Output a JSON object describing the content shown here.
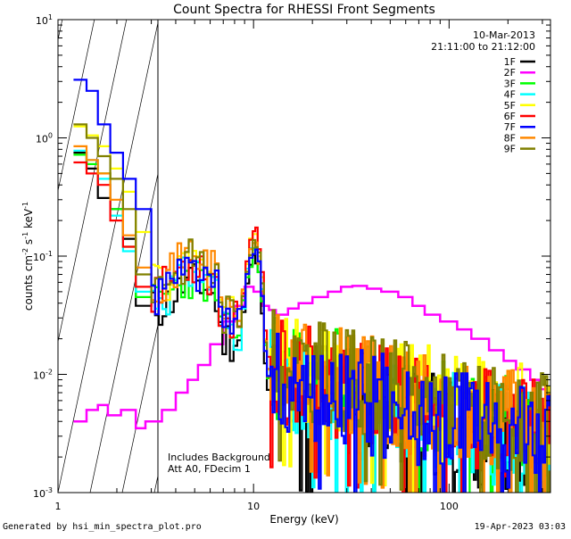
{
  "chart_data": {
    "type": "line",
    "title": "Count Spectra for RHESSI Front Segments",
    "xlabel": "Energy (keV)",
    "ylabel_base": "counts cm",
    "ylabel_exp1": "-2",
    "ylabel_mid": " s",
    "ylabel_exp2": "-1",
    "ylabel_tail": " keV",
    "ylabel_exp3": "-1",
    "xscale": "log",
    "yscale": "log",
    "xlim": [
      1,
      330
    ],
    "ylim": [
      0.001,
      10
    ],
    "x_ticks": [
      {
        "value": 1,
        "label": "1"
      },
      {
        "value": 10,
        "label": "10"
      },
      {
        "value": 100,
        "label": "100"
      }
    ],
    "y_ticks": [
      {
        "value": 0.001,
        "base": "10",
        "exp": "-3"
      },
      {
        "value": 0.01,
        "base": "10",
        "exp": "-2"
      },
      {
        "value": 0.1,
        "base": "10",
        "exp": "-1"
      },
      {
        "value": 1,
        "base": "10",
        "exp": "0"
      },
      {
        "value": 10,
        "base": "10",
        "exp": "1"
      }
    ],
    "hatch_region_x": [
      1,
      3
    ],
    "date": "10-Mar-2013",
    "time_range": "21:11:00 to 21:12:00",
    "annotations": [
      "Includes Background",
      "Att A0, FDecim 1"
    ],
    "series": [
      {
        "name": "1F",
        "color": "#000000",
        "low": [
          0.75,
          0.55,
          0.31,
          0.25,
          0.14,
          0.038
        ],
        "base": 0.037,
        "peak": 0.095,
        "tail_start": 0.008,
        "tail_end": 0.0022,
        "seed": 11
      },
      {
        "name": "2F",
        "color": "#ff00ff",
        "special": true,
        "points": [
          [
            1.2,
            0.004
          ],
          [
            1.4,
            0.005
          ],
          [
            1.6,
            0.0055
          ],
          [
            1.8,
            0.0045
          ],
          [
            2.1,
            0.005
          ],
          [
            2.5,
            0.0035
          ],
          [
            2.8,
            0.004
          ],
          [
            3.0,
            0.004
          ],
          [
            3.4,
            0.005
          ],
          [
            4,
            0.007
          ],
          [
            4.6,
            0.009
          ],
          [
            5.2,
            0.012
          ],
          [
            6,
            0.018
          ],
          [
            7,
            0.028
          ],
          [
            8,
            0.038
          ],
          [
            9,
            0.055
          ],
          [
            10,
            0.05
          ],
          [
            11,
            0.038
          ],
          [
            12,
            0.035
          ],
          [
            13,
            0.032
          ],
          [
            15,
            0.036
          ],
          [
            17,
            0.04
          ],
          [
            20,
            0.045
          ],
          [
            24,
            0.05
          ],
          [
            28,
            0.055
          ],
          [
            32,
            0.056
          ],
          [
            38,
            0.053
          ],
          [
            45,
            0.05
          ],
          [
            55,
            0.045
          ],
          [
            65,
            0.038
          ],
          [
            75,
            0.032
          ],
          [
            90,
            0.028
          ],
          [
            110,
            0.024
          ],
          [
            130,
            0.02
          ],
          [
            160,
            0.016
          ],
          [
            190,
            0.013
          ],
          [
            220,
            0.011
          ],
          [
            260,
            0.009
          ],
          [
            290,
            0.0075
          ],
          [
            320,
            0.0065
          ]
        ]
      },
      {
        "name": "3F",
        "color": "#00ff00",
        "low": [
          0.72,
          0.6,
          0.5,
          0.25,
          0.12,
          0.045
        ],
        "base": 0.042,
        "peak": 0.11,
        "tail_start": 0.012,
        "tail_end": 0.003,
        "seed": 23
      },
      {
        "name": "4F",
        "color": "#00ffff",
        "low": [
          0.78,
          0.65,
          0.45,
          0.22,
          0.11,
          0.05
        ],
        "base": 0.046,
        "peak": 0.12,
        "tail_start": 0.009,
        "tail_end": 0.0025,
        "seed": 31
      },
      {
        "name": "5F",
        "color": "#ffff00",
        "low": [
          1.25,
          1.05,
          0.85,
          0.55,
          0.35,
          0.16
        ],
        "base": 0.06,
        "peak": 0.15,
        "tail_start": 0.012,
        "tail_end": 0.004,
        "seed": 47
      },
      {
        "name": "6F",
        "color": "#ff0000",
        "low": [
          0.62,
          0.5,
          0.4,
          0.2,
          0.12,
          0.055
        ],
        "base": 0.055,
        "peak": 0.16,
        "tail_start": 0.011,
        "tail_end": 0.003,
        "seed": 53
      },
      {
        "name": "7F",
        "color": "#0000ff",
        "low": [
          3.1,
          2.5,
          1.3,
          0.75,
          0.45,
          0.25
        ],
        "base": 0.048,
        "peak": 0.115,
        "tail_start": 0.009,
        "tail_end": 0.0025,
        "seed": 61
      },
      {
        "name": "8F",
        "color": "#ff8800",
        "low": [
          0.85,
          0.65,
          0.5,
          0.3,
          0.15,
          0.08
        ],
        "base": 0.065,
        "peak": 0.13,
        "tail_start": 0.012,
        "tail_end": 0.0035,
        "seed": 71
      },
      {
        "name": "9F",
        "color": "#808000",
        "low": [
          1.3,
          1.0,
          0.7,
          0.45,
          0.25,
          0.07
        ],
        "base": 0.06,
        "peak": 0.14,
        "tail_start": 0.013,
        "tail_end": 0.0035,
        "seed": 83
      }
    ]
  },
  "footer": {
    "left": "Generated by hsi_min_spectra_plot.pro",
    "right": "19-Apr-2023 03:03"
  }
}
